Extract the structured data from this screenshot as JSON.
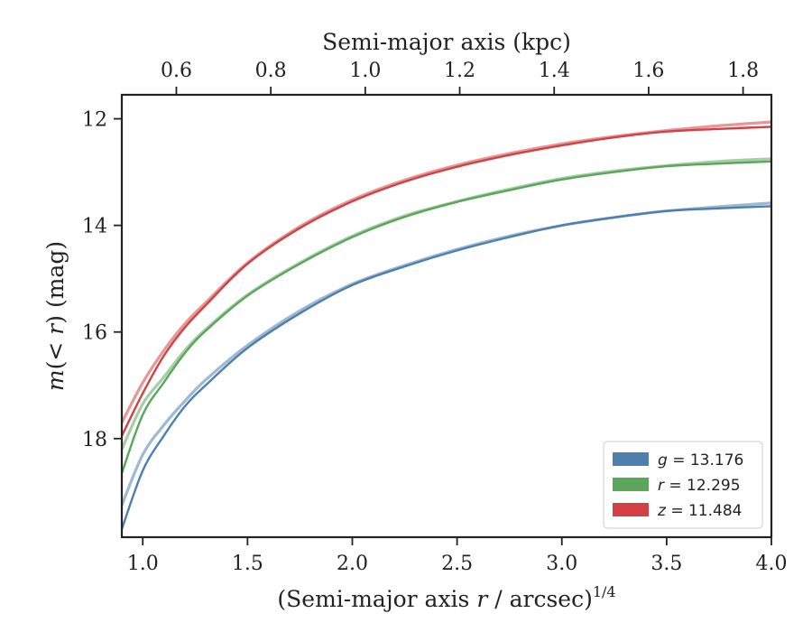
{
  "chart_data": {
    "type": "line",
    "title": "",
    "xlabel": "(Semi-major axis r / arcsec)",
    "xlabel_sup": "1/4",
    "xlabel_var": "r",
    "ylabel": "m(< r) (mag)",
    "top_xlabel": "Semi-major axis (kpc)",
    "xlim": [
      0.9,
      4.0
    ],
    "ylim": [
      19.85,
      11.55
    ],
    "y_inverted": true,
    "x_ticks": [
      1.0,
      1.5,
      2.0,
      2.5,
      3.0,
      3.5,
      4.0
    ],
    "x_tick_labels": [
      "1.0",
      "1.5",
      "2.0",
      "2.5",
      "3.0",
      "3.5",
      "4.0"
    ],
    "y_ticks": [
      12,
      14,
      16,
      18
    ],
    "y_tick_labels": [
      "12",
      "14",
      "16",
      "18"
    ],
    "top_x_ticks_kpc": [
      0.6,
      0.8,
      1.0,
      1.2,
      1.4,
      1.6,
      1.8
    ],
    "top_x_tick_labels": [
      "0.6",
      "0.8",
      "1.0",
      "1.2",
      "1.4",
      "1.6",
      "1.8"
    ],
    "top_axis_mapping": {
      "kpc": [
        0.5,
        1.86
      ],
      "x": [
        0.935,
        4.0
      ]
    },
    "grid": false,
    "legend_position": "lower-right",
    "series": [
      {
        "name": "g = 13.176",
        "legend_var": "g",
        "legend_value": "13.176",
        "color": "#4e7fae",
        "x": [
          0.9,
          1.0,
          1.1,
          1.2,
          1.3,
          1.5,
          1.75,
          2.0,
          2.25,
          2.5,
          2.75,
          3.0,
          3.25,
          3.5,
          3.75,
          4.0
        ],
        "y_upper": [
          19.25,
          18.3,
          17.75,
          17.3,
          16.9,
          16.25,
          15.6,
          15.1,
          14.75,
          14.45,
          14.2,
          14.0,
          13.85,
          13.73,
          13.65,
          13.58
        ],
        "y_lower": [
          19.7,
          18.6,
          17.95,
          17.4,
          17.0,
          16.3,
          15.65,
          15.12,
          14.77,
          14.47,
          14.22,
          14.0,
          13.85,
          13.73,
          13.68,
          13.64
        ]
      },
      {
        "name": "r = 12.295",
        "legend_var": "r",
        "legend_value": "12.295",
        "color": "#5ca65c",
        "x": [
          0.9,
          1.0,
          1.1,
          1.2,
          1.3,
          1.5,
          1.75,
          2.0,
          2.25,
          2.5,
          2.75,
          3.0,
          3.25,
          3.5,
          3.75,
          4.0
        ],
        "y_upper": [
          18.2,
          17.35,
          16.85,
          16.35,
          15.95,
          15.3,
          14.7,
          14.2,
          13.82,
          13.55,
          13.32,
          13.12,
          12.98,
          12.88,
          12.8,
          12.75
        ],
        "y_lower": [
          18.65,
          17.55,
          16.95,
          16.4,
          15.98,
          15.32,
          14.72,
          14.22,
          13.84,
          13.56,
          13.34,
          13.14,
          13.0,
          12.89,
          12.84,
          12.8
        ]
      },
      {
        "name": "z = 11.484",
        "legend_var": "z",
        "legend_value": "11.484",
        "color": "#d44144",
        "x": [
          0.9,
          1.0,
          1.1,
          1.2,
          1.3,
          1.5,
          1.75,
          2.0,
          2.25,
          2.5,
          2.75,
          3.0,
          3.25,
          3.5,
          3.75,
          4.0
        ],
        "y_upper": [
          17.7,
          16.95,
          16.35,
          15.85,
          15.45,
          14.7,
          14.02,
          13.52,
          13.15,
          12.87,
          12.65,
          12.47,
          12.33,
          12.22,
          12.13,
          12.06
        ],
        "y_lower": [
          17.95,
          17.15,
          16.45,
          15.92,
          15.5,
          14.72,
          14.05,
          13.55,
          13.18,
          12.9,
          12.68,
          12.5,
          12.35,
          12.24,
          12.19,
          12.15
        ]
      }
    ]
  }
}
